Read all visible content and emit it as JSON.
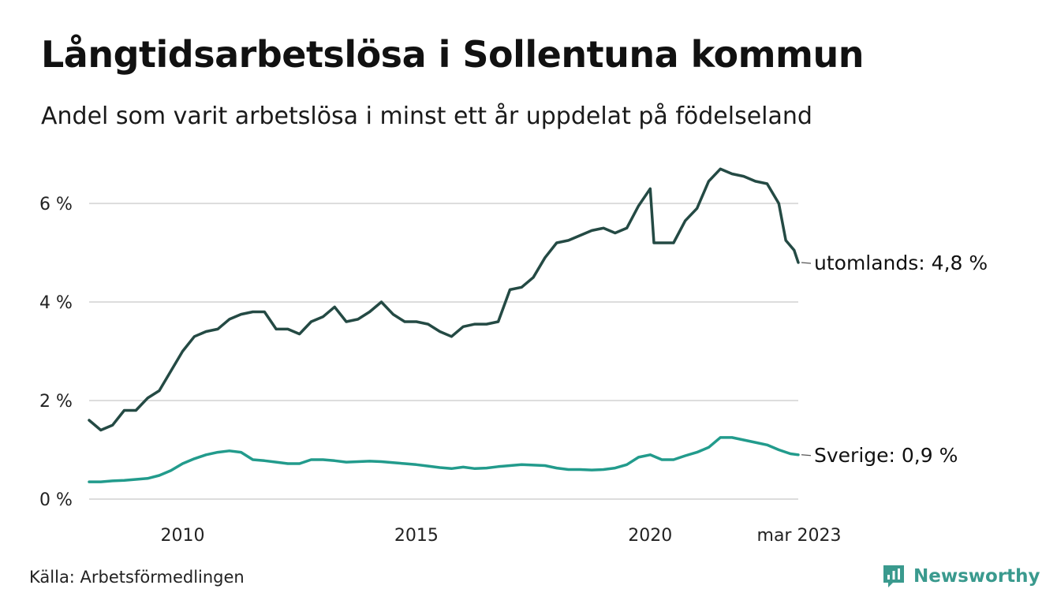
{
  "title": "Långtidsarbetslösa i Sollentuna kommun",
  "subtitle": "Andel som varit arbetslösa i minst ett år uppdelat på födelseland",
  "source": "Källa: Arbetsförmedlingen",
  "brand": "Newsworthy",
  "colors": {
    "utomlands": "#244a44",
    "sverige": "#229b8c",
    "grid": "#dddddd",
    "brand": "#3a9a8e"
  },
  "chart_data": {
    "type": "line",
    "title": "Långtidsarbetslösa i Sollentuna kommun",
    "subtitle": "Andel som varit arbetslösa i minst ett år uppdelat på födelseland",
    "xlabel": "",
    "ylabel": "",
    "ylim": [
      0,
      7
    ],
    "y_ticks": [
      0,
      2,
      4,
      6
    ],
    "y_tick_labels": [
      "0 %",
      "2 %",
      "4 %",
      "6 %"
    ],
    "x_ticks": [
      2010,
      2015,
      2020,
      2023.167
    ],
    "x_tick_labels": [
      "2010",
      "2015",
      "2020",
      "mar 2023"
    ],
    "grid": true,
    "legend": "direct labels at line ends",
    "series": [
      {
        "name": "utomlands",
        "end_label": "utomlands: 4,8 %",
        "points": [
          [
            2008.0,
            1.6
          ],
          [
            2008.25,
            1.4
          ],
          [
            2008.5,
            1.5
          ],
          [
            2008.75,
            1.8
          ],
          [
            2009.0,
            1.8
          ],
          [
            2009.25,
            2.05
          ],
          [
            2009.5,
            2.2
          ],
          [
            2009.75,
            2.6
          ],
          [
            2010.0,
            3.0
          ],
          [
            2010.25,
            3.3
          ],
          [
            2010.5,
            3.4
          ],
          [
            2010.75,
            3.45
          ],
          [
            2011.0,
            3.65
          ],
          [
            2011.25,
            3.75
          ],
          [
            2011.5,
            3.8
          ],
          [
            2011.75,
            3.8
          ],
          [
            2012.0,
            3.45
          ],
          [
            2012.25,
            3.45
          ],
          [
            2012.5,
            3.35
          ],
          [
            2012.75,
            3.6
          ],
          [
            2013.0,
            3.7
          ],
          [
            2013.25,
            3.9
          ],
          [
            2013.5,
            3.6
          ],
          [
            2013.75,
            3.65
          ],
          [
            2014.0,
            3.8
          ],
          [
            2014.25,
            4.0
          ],
          [
            2014.5,
            3.75
          ],
          [
            2014.75,
            3.6
          ],
          [
            2015.0,
            3.6
          ],
          [
            2015.25,
            3.55
          ],
          [
            2015.5,
            3.4
          ],
          [
            2015.75,
            3.3
          ],
          [
            2016.0,
            3.5
          ],
          [
            2016.25,
            3.55
          ],
          [
            2016.5,
            3.55
          ],
          [
            2016.75,
            3.6
          ],
          [
            2017.0,
            4.25
          ],
          [
            2017.25,
            4.3
          ],
          [
            2017.5,
            4.5
          ],
          [
            2017.75,
            4.9
          ],
          [
            2018.0,
            5.2
          ],
          [
            2018.25,
            5.25
          ],
          [
            2018.5,
            5.35
          ],
          [
            2018.75,
            5.45
          ],
          [
            2019.0,
            5.5
          ],
          [
            2019.25,
            5.4
          ],
          [
            2019.5,
            5.5
          ],
          [
            2019.75,
            5.95
          ],
          [
            2020.0,
            6.3
          ],
          [
            2020.08,
            5.2
          ],
          [
            2020.25,
            5.2
          ],
          [
            2020.5,
            5.2
          ],
          [
            2020.75,
            5.65
          ],
          [
            2021.0,
            5.9
          ],
          [
            2021.25,
            6.45
          ],
          [
            2021.5,
            6.7
          ],
          [
            2021.75,
            6.6
          ],
          [
            2022.0,
            6.55
          ],
          [
            2022.25,
            6.45
          ],
          [
            2022.5,
            6.4
          ],
          [
            2022.75,
            6.0
          ],
          [
            2022.9,
            5.25
          ],
          [
            2023.08,
            5.05
          ],
          [
            2023.167,
            4.8
          ]
        ]
      },
      {
        "name": "Sverige",
        "end_label": "Sverige: 0,9 %",
        "points": [
          [
            2008.0,
            0.35
          ],
          [
            2008.25,
            0.35
          ],
          [
            2008.5,
            0.37
          ],
          [
            2008.75,
            0.38
          ],
          [
            2009.0,
            0.4
          ],
          [
            2009.25,
            0.42
          ],
          [
            2009.5,
            0.48
          ],
          [
            2009.75,
            0.58
          ],
          [
            2010.0,
            0.72
          ],
          [
            2010.25,
            0.82
          ],
          [
            2010.5,
            0.9
          ],
          [
            2010.75,
            0.95
          ],
          [
            2011.0,
            0.98
          ],
          [
            2011.25,
            0.95
          ],
          [
            2011.5,
            0.8
          ],
          [
            2011.75,
            0.78
          ],
          [
            2012.0,
            0.75
          ],
          [
            2012.25,
            0.72
          ],
          [
            2012.5,
            0.72
          ],
          [
            2012.75,
            0.8
          ],
          [
            2013.0,
            0.8
          ],
          [
            2013.25,
            0.78
          ],
          [
            2013.5,
            0.75
          ],
          [
            2013.75,
            0.76
          ],
          [
            2014.0,
            0.77
          ],
          [
            2014.25,
            0.76
          ],
          [
            2014.5,
            0.74
          ],
          [
            2014.75,
            0.72
          ],
          [
            2015.0,
            0.7
          ],
          [
            2015.25,
            0.67
          ],
          [
            2015.5,
            0.64
          ],
          [
            2015.75,
            0.62
          ],
          [
            2016.0,
            0.65
          ],
          [
            2016.25,
            0.62
          ],
          [
            2016.5,
            0.63
          ],
          [
            2016.75,
            0.66
          ],
          [
            2017.0,
            0.68
          ],
          [
            2017.25,
            0.7
          ],
          [
            2017.5,
            0.69
          ],
          [
            2017.75,
            0.68
          ],
          [
            2018.0,
            0.63
          ],
          [
            2018.25,
            0.6
          ],
          [
            2018.5,
            0.6
          ],
          [
            2018.75,
            0.59
          ],
          [
            2019.0,
            0.6
          ],
          [
            2019.25,
            0.63
          ],
          [
            2019.5,
            0.7
          ],
          [
            2019.75,
            0.85
          ],
          [
            2020.0,
            0.9
          ],
          [
            2020.25,
            0.8
          ],
          [
            2020.5,
            0.8
          ],
          [
            2020.75,
            0.88
          ],
          [
            2021.0,
            0.95
          ],
          [
            2021.25,
            1.05
          ],
          [
            2021.5,
            1.25
          ],
          [
            2021.75,
            1.25
          ],
          [
            2022.0,
            1.2
          ],
          [
            2022.25,
            1.15
          ],
          [
            2022.5,
            1.1
          ],
          [
            2022.75,
            1.0
          ],
          [
            2023.0,
            0.92
          ],
          [
            2023.167,
            0.9
          ]
        ]
      }
    ]
  }
}
